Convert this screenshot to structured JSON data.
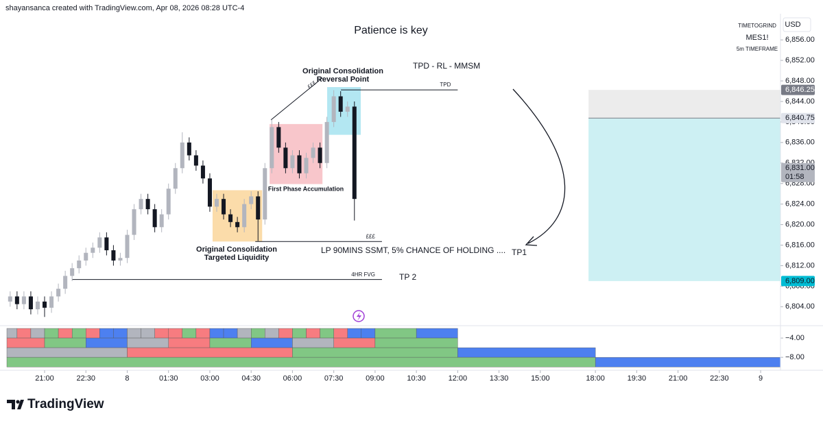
{
  "header": "shayansanca created with TradingView.com, Apr 08, 2026 08:28 UTC-4",
  "footer": "TradingView",
  "chart_data": [
    {
      "type": "candlestick",
      "title": "Patience is key",
      "symbol_info": [
        "TIMETOGRIND",
        "MES1!",
        "5m TIMEFRAME"
      ],
      "currency": "USD",
      "up_color": "#b2b5be",
      "down_color": "#131722",
      "xlim": [
        -1.37,
        26.72
      ],
      "ylim": [
        6800.7,
        6861.1
      ],
      "xticks": [
        {
          "value": 0,
          "label": "21:00"
        },
        {
          "value": 1.5,
          "label": "22:30"
        },
        {
          "value": 3,
          "label": "8"
        },
        {
          "value": 4.5,
          "label": "01:30"
        },
        {
          "value": 6,
          "label": "03:00"
        },
        {
          "value": 7.5,
          "label": "04:30"
        },
        {
          "value": 9,
          "label": "06:00"
        },
        {
          "value": 10.5,
          "label": "07:30"
        },
        {
          "value": 12,
          "label": "09:00"
        },
        {
          "value": 13.5,
          "label": "10:30"
        },
        {
          "value": 15,
          "label": "12:00"
        },
        {
          "value": 16.5,
          "label": "13:30"
        },
        {
          "value": 18,
          "label": "15:00"
        },
        {
          "value": 20,
          "label": "18:00"
        },
        {
          "value": 21.5,
          "label": "19:30"
        },
        {
          "value": 23,
          "label": "21:00"
        },
        {
          "value": 24.5,
          "label": "22:30"
        },
        {
          "value": 26,
          "label": "9"
        }
      ],
      "yticks": [
        {
          "value": 6804,
          "label": "6,804.00"
        },
        {
          "value": 6808,
          "label": "6,808.00"
        },
        {
          "value": 6812,
          "label": "6,812.00"
        },
        {
          "value": 6816,
          "label": "6,816.00"
        },
        {
          "value": 6820,
          "label": "6,820.00"
        },
        {
          "value": 6824,
          "label": "6,824.00"
        },
        {
          "value": 6828,
          "label": "6,828.00"
        },
        {
          "value": 6832,
          "label": "6,832.00"
        },
        {
          "value": 6836,
          "label": "6,836.00"
        },
        {
          "value": 6840,
          "label": "6,840.00"
        },
        {
          "value": 6844,
          "label": "6,844.00"
        },
        {
          "value": 6848,
          "label": "6,848.00"
        },
        {
          "value": 6852,
          "label": "6,852.00"
        },
        {
          "value": 6856,
          "label": "6,856.00"
        }
      ],
      "x": [
        -1.25,
        -1,
        -0.75,
        -0.5,
        -0.25,
        0,
        0.25,
        0.5,
        0.75,
        1,
        1.25,
        1.5,
        1.75,
        2,
        2.25,
        2.5,
        2.75,
        3,
        3.25,
        3.5,
        3.75,
        4,
        4.25,
        4.5,
        4.75,
        5,
        5.25,
        5.5,
        5.75,
        6,
        6.25,
        6.5,
        6.75,
        7,
        7.25,
        7.5,
        7.75,
        8,
        8.25,
        8.5,
        8.75,
        9,
        9.25,
        9.5,
        9.75,
        10,
        10.25,
        10.5,
        10.75,
        11,
        11.25
      ],
      "open": [
        6805,
        6806,
        6804.5,
        6806,
        6803.5,
        6805,
        6803.8,
        6806,
        6807.5,
        6810,
        6811.5,
        6813,
        6814.5,
        6815.5,
        6817.5,
        6815,
        6813,
        6813.5,
        6818,
        6823,
        6825,
        6823,
        6819.5,
        6822,
        6827,
        6831,
        6836,
        6833.5,
        6831.5,
        6829,
        6823.5,
        6825,
        6822,
        6820.5,
        6819.5,
        6824,
        6825.5,
        6821,
        6831,
        6839,
        6835,
        6831,
        6833.5,
        6830,
        6833,
        6835,
        6832,
        6840,
        6845,
        6842,
        6843
      ],
      "high": [
        6807,
        6807,
        6807,
        6807,
        6806,
        6806,
        6807,
        6808.5,
        6811,
        6812.5,
        6814,
        6815.5,
        6816.5,
        6818.5,
        6818.5,
        6816,
        6814.5,
        6819,
        6824,
        6826,
        6826,
        6824,
        6823,
        6828,
        6832,
        6838,
        6837,
        6834.5,
        6832.5,
        6830,
        6826,
        6826,
        6823,
        6821.5,
        6825,
        6826.5,
        6826.5,
        6832,
        6840.5,
        6840,
        6836,
        6834.5,
        6834.5,
        6834,
        6836,
        6836,
        6841,
        6846.2,
        6846,
        6844,
        6844
      ],
      "low": [
        6804,
        6803.5,
        6803.5,
        6802.5,
        6802.5,
        6802,
        6802.8,
        6805,
        6806.5,
        6809,
        6810.5,
        6812,
        6813.5,
        6814.5,
        6814,
        6812,
        6812,
        6812.5,
        6817,
        6822,
        6822,
        6818.5,
        6818.5,
        6821,
        6826,
        6830,
        6832.5,
        6830.5,
        6828,
        6822.5,
        6822.5,
        6821,
        6819.5,
        6818.5,
        6818.5,
        6823,
        6816.8,
        6820,
        6830,
        6834,
        6830,
        6830,
        6829,
        6829,
        6832,
        6831,
        6831,
        6839,
        6841,
        6841,
        6820.8
      ],
      "close": [
        6806,
        6804.5,
        6806,
        6803.5,
        6805,
        6803.8,
        6806,
        6807.5,
        6810,
        6811.5,
        6813,
        6814.5,
        6815.5,
        6817.5,
        6815,
        6813,
        6813.5,
        6818,
        6823,
        6825,
        6823,
        6819.5,
        6822,
        6827,
        6831,
        6836,
        6833.5,
        6831.5,
        6829,
        6823.5,
        6825,
        6822,
        6820.5,
        6819.5,
        6824,
        6825.5,
        6821,
        6831,
        6839,
        6835,
        6831,
        6833.5,
        6830,
        6833,
        6835,
        6832,
        6840,
        6845,
        6842,
        6843,
        6825
      ],
      "zones": [
        {
          "x": [
            6.1,
            7.9
          ],
          "y": [
            6816.7,
            6826.7
          ],
          "color": "#fbdcaa"
        },
        {
          "x": [
            8.17,
            10.09
          ],
          "y": [
            6827.9,
            6839.6
          ],
          "color": "#f8c6cb"
        },
        {
          "x": [
            10.26,
            11.48
          ],
          "y": [
            6837.5,
            6846.8
          ],
          "color": "#b3e7f2"
        }
      ],
      "levels": [
        {
          "label": "TPD",
          "value": 6846.25,
          "x": [
            10.76,
            15
          ]
        },
        {
          "label": "£££",
          "value": 6816.7,
          "x": [
            7.65,
            12.25
          ]
        },
        {
          "label": "4HR FVG",
          "value": 6809.3,
          "x": [
            1.0,
            12.25
          ]
        }
      ],
      "trendline": {
        "x": [
          8.22,
          10.09
        ],
        "y": [
          6840.4,
          6848.6
        ]
      },
      "position": {
        "x_start": 19.75,
        "stop": 6846.25,
        "entry": 6840.75,
        "target": 6809,
        "stop_color": "#ececec",
        "target_color": "#cdf0f3"
      },
      "price_labels": [
        {
          "value": 6846.25,
          "label": "6,846.25",
          "color": "#787b86",
          "text_color": "#ffffff"
        },
        {
          "value": 6840.75,
          "label": "6,840.75",
          "color": "#e0e3eb",
          "text_color": "#131722"
        },
        {
          "value": 6831.0,
          "label": "6,831.00",
          "color": "#b2b5be",
          "text_color": "#131722"
        },
        {
          "value": 6809.0,
          "label": "6,809.00",
          "color": "#00bcd4",
          "text_color": "#131722"
        }
      ],
      "countdown": "01:58",
      "annotations": {
        "tpd_rl_mmsm": "TPD - RL - MMSM",
        "reversal": [
          "Original Consolidation",
          "Reversal Point"
        ],
        "pounds": "£££",
        "accumulation": "First Phase Accumulation",
        "targeted": [
          "Original Consolidation",
          "Targeted Liquidity"
        ],
        "lp": "LP 90MINS SSMT, 5% CHANCE OF HOLDING ....",
        "tp1": "TP1",
        "tp2": "TP 2"
      }
    },
    {
      "type": "timeline",
      "xlim": [
        -1.37,
        26.72
      ],
      "ylim": [
        -10.4,
        -1.86
      ],
      "yticks": [
        {
          "value": -4,
          "label": "−4.00"
        },
        {
          "value": -8,
          "label": "−8.00"
        }
      ],
      "rows": [
        {
          "range": [
            -2,
            -4
          ],
          "edges": [
            -1.37,
            -1,
            -0.5,
            0,
            0.5,
            1,
            1.5,
            2,
            2.5,
            3,
            3.5,
            4,
            4.5,
            5,
            5.5,
            6,
            6.5,
            7,
            7.5,
            8,
            8.5,
            9,
            9.5,
            10,
            10.5,
            11,
            11.5,
            12,
            13.5,
            15
          ],
          "colors": [
            "#b2b5be",
            "#f77c80",
            "#b2b5be",
            "#81c784",
            "#f77c80",
            "#81c784",
            "#f77c80",
            "#4d80f0",
            "#4d80f0",
            "#b2b5be",
            "#b2b5be",
            "#f77c80",
            "#f77c80",
            "#81c784",
            "#f77c80",
            "#4d80f0",
            "#4d80f0",
            "#b2b5be",
            "#81c784",
            "#b2b5be",
            "#f77c80",
            "#81c784",
            "#f77c80",
            "#81c784",
            "#f77c80",
            "#4d80f0",
            "#4d80f0",
            "#81c784",
            "#4d80f0"
          ]
        },
        {
          "range": [
            -4,
            -6
          ],
          "edges": [
            -1.37,
            0,
            1.5,
            3,
            4.5,
            6,
            7.5,
            9,
            10.5,
            12,
            15
          ],
          "colors": [
            "#f77c80",
            "#81c784",
            "#4d80f0",
            "#b2b5be",
            "#f77c80",
            "#81c784",
            "#4d80f0",
            "#b2b5be",
            "#f77c80",
            "#81c784"
          ]
        },
        {
          "range": [
            -6,
            -8
          ],
          "edges": [
            -1.37,
            3,
            9,
            15,
            20
          ],
          "colors": [
            "#b2b5be",
            "#f77c80",
            "#81c784",
            "#4d80f0"
          ]
        },
        {
          "range": [
            -8,
            -10
          ],
          "edges": [
            -1.37,
            20,
            26.72
          ],
          "colors": [
            "#81c784",
            "#4d80f0"
          ]
        }
      ]
    }
  ]
}
